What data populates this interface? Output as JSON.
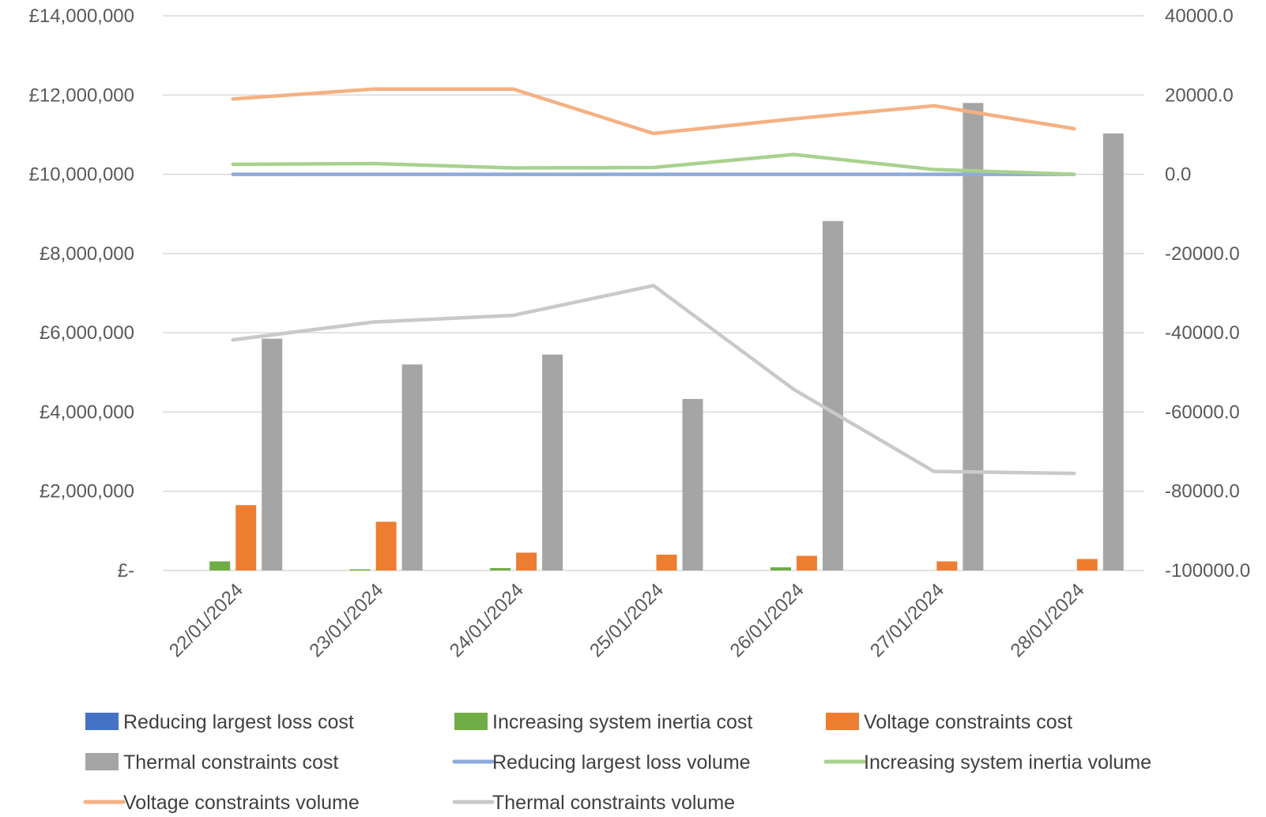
{
  "chart_data": {
    "type": "bar",
    "title": "",
    "xlabel": "",
    "ylabel": "",
    "y2label": "",
    "categories": [
      "22/01/2024",
      "23/01/2024",
      "24/01/2024",
      "25/01/2024",
      "26/01/2024",
      "27/01/2024",
      "28/01/2024"
    ],
    "ylim": [
      0,
      14000000
    ],
    "y2lim": [
      -100000,
      40000
    ],
    "y_ticks": [
      0,
      2000000,
      4000000,
      6000000,
      8000000,
      10000000,
      12000000,
      14000000
    ],
    "y_tick_labels": [
      "£-",
      "£2,000,000",
      "£4,000,000",
      "£6,000,000",
      "£8,000,000",
      "£10,000,000",
      "£12,000,000",
      "£14,000,000"
    ],
    "y2_ticks": [
      -100000,
      -80000,
      -60000,
      -40000,
      -20000,
      0,
      20000,
      40000
    ],
    "y2_tick_labels": [
      "-100000.0",
      "-80000.0",
      "-60000.0",
      "-40000.0",
      "-20000.0",
      "0.0",
      "20000.0",
      "40000.0"
    ],
    "grid": true,
    "legend_position": "bottom",
    "bar_series": [
      {
        "name": "Reducing largest loss cost",
        "color": "#4472C4",
        "values": [
          0,
          0,
          0,
          0,
          0,
          0,
          0
        ]
      },
      {
        "name": "Increasing system inertia cost",
        "color": "#70AD47",
        "values": [
          230000,
          30000,
          60000,
          0,
          80000,
          0,
          0
        ]
      },
      {
        "name": "Voltage constraints cost",
        "color": "#ED7D31",
        "values": [
          1650000,
          1230000,
          450000,
          400000,
          370000,
          230000,
          290000
        ]
      },
      {
        "name": "Thermal constraints cost",
        "color": "#A5A5A5",
        "values": [
          5850000,
          5200000,
          5450000,
          4330000,
          8820000,
          11800000,
          11030000
        ]
      }
    ],
    "line_series": [
      {
        "name": "Reducing largest loss volume",
        "color": "#8FAADC",
        "axis": "secondary",
        "values": [
          0,
          0,
          0,
          0,
          0,
          0,
          0
        ]
      },
      {
        "name": "Increasing system inertia volume",
        "color": "#A9D18E",
        "axis": "secondary",
        "values": [
          2500,
          2700,
          1600,
          1700,
          5000,
          1200,
          0
        ]
      },
      {
        "name": "Voltage constraints volume",
        "color": "#F4B183",
        "axis": "secondary",
        "values": [
          19000,
          21500,
          21500,
          10300,
          14000,
          17300,
          11500
        ]
      },
      {
        "name": "Thermal constraints volume",
        "color": "#C9C9C9",
        "axis": "secondary",
        "values": [
          -41800,
          -37300,
          -35600,
          -28100,
          -54300,
          -75000,
          -75500
        ]
      }
    ],
    "legend": [
      {
        "name": "Reducing largest loss cost",
        "kind": "bar",
        "color": "#4472C4"
      },
      {
        "name": "Increasing system inertia cost",
        "kind": "bar",
        "color": "#70AD47"
      },
      {
        "name": "Voltage constraints cost",
        "kind": "bar",
        "color": "#ED7D31"
      },
      {
        "name": "Thermal constraints cost",
        "kind": "bar",
        "color": "#A5A5A5"
      },
      {
        "name": "Reducing largest loss volume",
        "kind": "line",
        "color": "#8FAADC"
      },
      {
        "name": "Increasing system inertia volume",
        "kind": "line",
        "color": "#A9D18E"
      },
      {
        "name": "Voltage constraints volume",
        "kind": "line",
        "color": "#F4B183"
      },
      {
        "name": "Thermal constraints volume",
        "kind": "line",
        "color": "#C9C9C9"
      }
    ]
  }
}
